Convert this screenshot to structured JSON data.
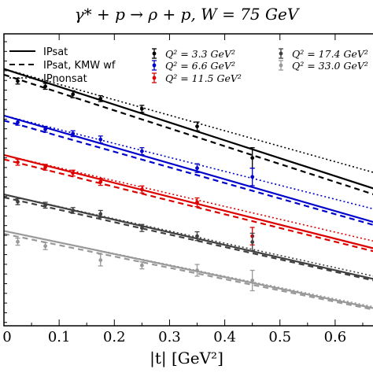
{
  "chart_data": {
    "type": "line",
    "title": "γ* + p → ρ + p, W = 75 GeV",
    "xlabel": "|t| [GeV²]",
    "ylabel": "",
    "xlim": [
      0,
      0.67
    ],
    "x_ticks": [
      "0",
      "0.1",
      "0.2",
      "0.3",
      "0.4",
      "0.5",
      "0.6"
    ],
    "x_tick_values": [
      0,
      0.1,
      0.2,
      0.3,
      0.4,
      0.5,
      0.6
    ],
    "legend_models": [
      {
        "name": "IPsat",
        "style": "solid"
      },
      {
        "name": "IPsat, KMW wf",
        "style": "dashed"
      },
      {
        "name": "IPnonsat",
        "style": "dotted"
      }
    ],
    "legend_data": [
      {
        "name": "Q² = 3.3 GeV²",
        "color": "#000000"
      },
      {
        "name": "Q² = 6.6 GeV²",
        "color": "#0000cc"
      },
      {
        "name": "Q² = 11.5 GeV²",
        "color": "#dd0000"
      },
      {
        "name": "Q² = 17.4 GeV²",
        "color": "#404040"
      },
      {
        "name": "Q² = 33.0 GeV²",
        "color": "#999999"
      }
    ],
    "series": [
      {
        "color": "#000000",
        "ipsat": [
          [
            0,
            0.88
          ],
          [
            0.67,
            0.47
          ]
        ],
        "kmw": [
          [
            0,
            0.86
          ],
          [
            0.67,
            0.45
          ]
        ],
        "nonsat": [
          [
            0,
            0.88
          ],
          [
            0.67,
            0.525
          ]
        ],
        "points": [
          {
            "x": 0.025,
            "y": 0.838,
            "err": 0.01
          },
          {
            "x": 0.075,
            "y": 0.82,
            "err": 0.01
          },
          {
            "x": 0.125,
            "y": 0.793,
            "err": 0.012
          },
          {
            "x": 0.175,
            "y": 0.778,
            "err": 0.01
          },
          {
            "x": 0.25,
            "y": 0.743,
            "err": 0.012
          },
          {
            "x": 0.35,
            "y": 0.683,
            "err": 0.015
          },
          {
            "x": 0.45,
            "y": 0.575,
            "err": 0.035
          }
        ]
      },
      {
        "color": "#0000cc",
        "ipsat": [
          [
            0,
            0.72
          ],
          [
            0.67,
            0.355
          ]
        ],
        "kmw": [
          [
            0,
            0.703
          ],
          [
            0.67,
            0.345
          ]
        ],
        "nonsat": [
          [
            0,
            0.72
          ],
          [
            0.67,
            0.4
          ]
        ],
        "points": [
          {
            "x": 0.025,
            "y": 0.697,
            "err": 0.01
          },
          {
            "x": 0.075,
            "y": 0.673,
            "err": 0.01
          },
          {
            "x": 0.125,
            "y": 0.658,
            "err": 0.01
          },
          {
            "x": 0.175,
            "y": 0.638,
            "err": 0.012
          },
          {
            "x": 0.25,
            "y": 0.598,
            "err": 0.012
          },
          {
            "x": 0.35,
            "y": 0.54,
            "err": 0.015
          },
          {
            "x": 0.45,
            "y": 0.51,
            "err": 0.03
          }
        ]
      },
      {
        "color": "#dd0000",
        "ipsat": [
          [
            0,
            0.585
          ],
          [
            0.67,
            0.265
          ]
        ],
        "kmw": [
          [
            0,
            0.57
          ],
          [
            0.67,
            0.255
          ]
        ],
        "nonsat": [
          [
            0,
            0.585
          ],
          [
            0.67,
            0.29
          ]
        ],
        "points": [
          {
            "x": 0.025,
            "y": 0.56,
            "err": 0.01
          },
          {
            "x": 0.075,
            "y": 0.543,
            "err": 0.01
          },
          {
            "x": 0.125,
            "y": 0.523,
            "err": 0.01
          },
          {
            "x": 0.175,
            "y": 0.493,
            "err": 0.012
          },
          {
            "x": 0.25,
            "y": 0.467,
            "err": 0.012
          },
          {
            "x": 0.35,
            "y": 0.423,
            "err": 0.015
          },
          {
            "x": 0.45,
            "y": 0.307,
            "err": 0.03
          }
        ]
      },
      {
        "color": "#404040",
        "ipsat": [
          [
            0,
            0.45
          ],
          [
            0.67,
            0.16
          ]
        ],
        "kmw": [
          [
            0,
            0.44
          ],
          [
            0.67,
            0.155
          ]
        ],
        "nonsat": [
          [
            0,
            0.45
          ],
          [
            0.67,
            0.17
          ]
        ],
        "points": [
          {
            "x": 0.025,
            "y": 0.425,
            "err": 0.01
          },
          {
            "x": 0.075,
            "y": 0.413,
            "err": 0.01
          },
          {
            "x": 0.125,
            "y": 0.395,
            "err": 0.01
          },
          {
            "x": 0.175,
            "y": 0.383,
            "err": 0.012
          },
          {
            "x": 0.25,
            "y": 0.335,
            "err": 0.012
          },
          {
            "x": 0.35,
            "y": 0.307,
            "err": 0.015
          },
          {
            "x": 0.45,
            "y": 0.287,
            "err": 0.03
          }
        ]
      },
      {
        "color": "#999999",
        "ipsat": [
          [
            0,
            0.325
          ],
          [
            0.67,
            0.06
          ]
        ],
        "kmw": [
          [
            0,
            0.315
          ],
          [
            0.67,
            0.055
          ]
        ],
        "nonsat": [
          [
            0,
            0.325
          ],
          [
            0.67,
            0.065
          ]
        ],
        "points": [
          {
            "x": 0.025,
            "y": 0.288,
            "err": 0.012
          },
          {
            "x": 0.075,
            "y": 0.273,
            "err": 0.012
          },
          {
            "x": 0.175,
            "y": 0.225,
            "err": 0.02
          },
          {
            "x": 0.25,
            "y": 0.207,
            "err": 0.012
          },
          {
            "x": 0.35,
            "y": 0.19,
            "err": 0.02
          },
          {
            "x": 0.45,
            "y": 0.155,
            "err": 0.035
          }
        ]
      }
    ]
  }
}
